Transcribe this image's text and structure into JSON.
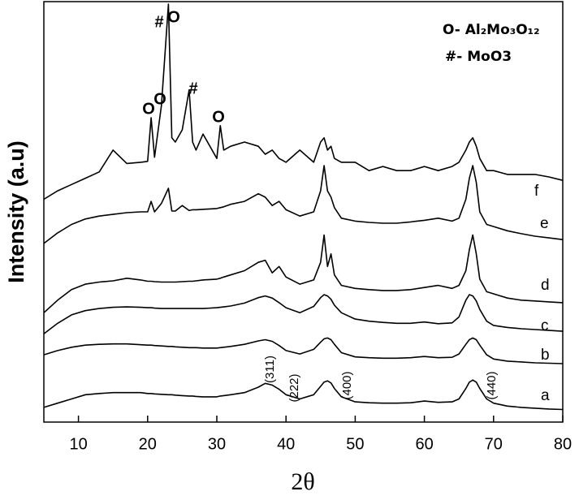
{
  "chart_data": {
    "type": "line",
    "y_label": "Intensity (a.u)",
    "x_label": "2θ",
    "xlim": [
      5,
      80
    ],
    "xticks": [
      10,
      20,
      30,
      40,
      50,
      60,
      70,
      80
    ],
    "ylim": [
      0,
      100
    ],
    "legend_text": [
      "O- Al₂Mo₃O₁₂",
      "#- MoO3"
    ],
    "annotations": [
      "#",
      "O",
      "O",
      "O",
      "#",
      "O",
      "(311)",
      "(222)",
      "(400)",
      "(440)"
    ],
    "x": [
      5,
      7,
      9,
      11,
      13,
      15,
      17,
      19,
      20,
      20.5,
      21,
      22,
      23,
      23.5,
      24,
      25,
      26,
      26.5,
      27,
      28,
      30,
      30.5,
      31,
      32,
      34,
      36,
      37,
      38,
      39,
      40,
      42,
      44,
      45,
      45.5,
      46,
      46.5,
      47,
      48,
      50,
      52,
      54,
      56,
      58,
      60,
      62,
      64,
      65,
      66,
      66.5,
      67,
      67.5,
      68,
      69,
      70,
      72,
      74,
      76,
      78,
      80
    ],
    "series": [
      {
        "name": "a",
        "color": "#000000",
        "values": [
          3.5,
          4.5,
          5.5,
          6.5,
          6.8,
          7,
          7,
          7,
          6.8,
          6.8,
          6.7,
          6.6,
          6.5,
          6.5,
          6.4,
          6.3,
          6.2,
          6.2,
          6.1,
          6,
          6,
          6.2,
          6.3,
          6.5,
          7,
          8.3,
          9.2,
          8.8,
          7.8,
          6.5,
          5.5,
          6.5,
          8.5,
          9.5,
          9.8,
          9.3,
          8,
          6,
          4.8,
          4.6,
          4.5,
          4.5,
          4.6,
          5,
          4.7,
          4.8,
          5.5,
          8,
          9.5,
          10,
          9.5,
          8,
          5.5,
          4.5,
          3.8,
          3.5,
          3.3,
          3.1,
          3
        ]
      },
      {
        "name": "b",
        "color": "#000000",
        "values": [
          16,
          17,
          17.8,
          18.3,
          18.5,
          18.6,
          18.6,
          18.4,
          18.3,
          18.3,
          18.2,
          18.1,
          18,
          18,
          17.9,
          17.8,
          17.7,
          17.7,
          17.7,
          17.6,
          17.6,
          17.7,
          17.8,
          18,
          18.5,
          19.3,
          19.6,
          19.2,
          18.2,
          17,
          16.2,
          17.3,
          19,
          19.8,
          20,
          19.6,
          18.5,
          16.5,
          15.5,
          15.3,
          15.2,
          15.2,
          15.3,
          15.6,
          15.3,
          15.4,
          16.2,
          18.5,
          19.6,
          20,
          19.6,
          18.3,
          16,
          15,
          14.5,
          14.3,
          14.1,
          14,
          13.9
        ]
      },
      {
        "name": "c",
        "color": "#000000",
        "values": [
          21,
          23.5,
          25.5,
          26.5,
          27,
          27.3,
          27.4,
          27.3,
          27.2,
          27.2,
          27.1,
          27,
          27,
          27,
          27,
          27,
          27,
          27,
          27,
          27,
          27.2,
          27.3,
          27.4,
          27.6,
          28.3,
          29.6,
          30,
          29.5,
          28.4,
          27.2,
          26,
          27.5,
          29.6,
          30.3,
          30,
          29.2,
          27.8,
          26,
          24.5,
          24,
          23.7,
          23.5,
          23.5,
          23.8,
          23.4,
          23.6,
          25,
          29,
          30.3,
          30,
          28.8,
          26.8,
          24,
          23,
          22.5,
          22.2,
          22,
          21.8,
          21.6
        ]
      },
      {
        "name": "d",
        "color": "#000000",
        "values": [
          26,
          29,
          31.5,
          32.8,
          33.3,
          33.6,
          34.2,
          33.8,
          33.5,
          33.5,
          33.4,
          33.3,
          33.3,
          33.3,
          33.3,
          33.4,
          33.5,
          33.5,
          33.6,
          33.8,
          34,
          34.2,
          34.5,
          35,
          36,
          38,
          38.5,
          35.5,
          37,
          34.5,
          32.8,
          33.8,
          38,
          44.5,
          37,
          40,
          35,
          32.5,
          31.8,
          31.5,
          31.3,
          31.3,
          31.5,
          32,
          32.5,
          31.8,
          32.5,
          36,
          41,
          44.5,
          40,
          34,
          31,
          30.5,
          29.5,
          29,
          28.8,
          28.6,
          28.4
        ]
      },
      {
        "name": "e",
        "color": "#000000",
        "values": [
          42.5,
          45,
          47,
          48.3,
          49,
          49.4,
          49.8,
          50,
          50,
          52.5,
          50,
          52,
          55.6,
          50.2,
          50.2,
          51.5,
          50.3,
          50.5,
          50.5,
          50.6,
          50.8,
          51,
          51.2,
          51.8,
          52.5,
          54.3,
          53.5,
          51.5,
          52.5,
          50.5,
          49,
          50,
          55,
          61,
          55,
          53.5,
          51,
          48.5,
          47.8,
          47.5,
          47.3,
          47.3,
          47.6,
          48,
          48.5,
          47.8,
          48.5,
          53,
          58,
          61,
          57,
          50,
          47,
          46.5,
          45.5,
          44.8,
          44.2,
          43.8,
          43.4
        ]
      },
      {
        "name": "f",
        "color": "#000000",
        "values": [
          53,
          55,
          56.5,
          58,
          59.5,
          64.7,
          61.5,
          61.8,
          62,
          72.4,
          63,
          75.3,
          99.4,
          67.6,
          66.6,
          69.5,
          79,
          66.6,
          64.7,
          68.5,
          62.7,
          70.5,
          64.7,
          65.6,
          66.6,
          65.6,
          63.7,
          64.7,
          62.7,
          61.8,
          64.7,
          61.8,
          66.6,
          67.6,
          64.7,
          65.6,
          62.7,
          61.8,
          61.8,
          59.8,
          60.8,
          59.8,
          59.8,
          60.8,
          59.8,
          60.8,
          61.8,
          64.7,
          66.6,
          67.6,
          65.6,
          62.7,
          59.8,
          59.8,
          58.9,
          58.9,
          58.9,
          58.3,
          57.5
        ]
      }
    ]
  }
}
